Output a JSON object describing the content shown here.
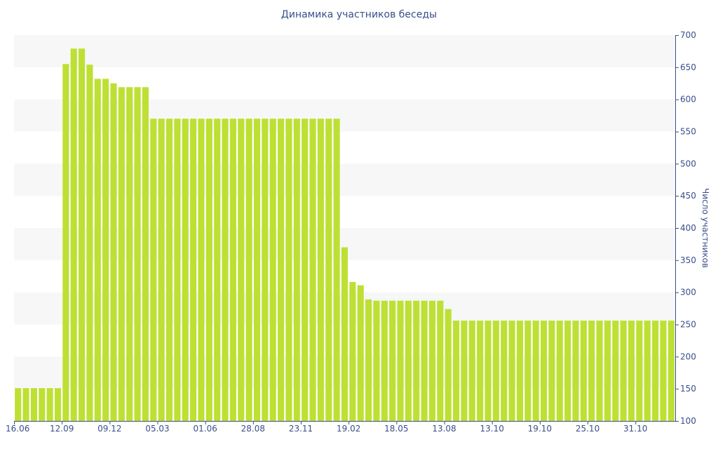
{
  "chart_data": {
    "type": "bar",
    "title": "Динамика участников беседы",
    "ylabel": "Число участников",
    "xlabel": "",
    "ylim": [
      100,
      700
    ],
    "yticks": [
      100,
      150,
      200,
      250,
      300,
      350,
      400,
      450,
      500,
      550,
      600,
      650,
      700
    ],
    "grid": "alternating horizontal bands",
    "y_axis_side": "right",
    "xtick_labels": [
      {
        "index": 0,
        "label": "16.06"
      },
      {
        "index": 6,
        "label": "12.09"
      },
      {
        "index": 12,
        "label": "09.12"
      },
      {
        "index": 18,
        "label": "05.03"
      },
      {
        "index": 24,
        "label": "01.06"
      },
      {
        "index": 30,
        "label": "28.08"
      },
      {
        "index": 36,
        "label": "23.11"
      },
      {
        "index": 42,
        "label": "19.02"
      },
      {
        "index": 48,
        "label": "18.05"
      },
      {
        "index": 54,
        "label": "13.08"
      },
      {
        "index": 60,
        "label": "13.10"
      },
      {
        "index": 66,
        "label": "19.10"
      },
      {
        "index": 72,
        "label": "25.10"
      },
      {
        "index": 78,
        "label": "31.10"
      }
    ],
    "values": [
      151,
      151,
      151,
      151,
      151,
      151,
      655,
      679,
      679,
      654,
      632,
      632,
      625,
      619,
      619,
      619,
      619,
      570,
      570,
      570,
      570,
      570,
      570,
      570,
      570,
      570,
      570,
      570,
      570,
      570,
      570,
      570,
      570,
      570,
      570,
      570,
      570,
      570,
      570,
      570,
      570,
      370,
      316,
      311,
      289,
      287,
      287,
      287,
      287,
      287,
      287,
      287,
      287,
      287,
      274,
      256,
      256,
      256,
      256,
      256,
      256,
      256,
      256,
      256,
      256,
      256,
      256,
      256,
      256,
      256,
      256,
      256,
      256,
      256,
      256,
      256,
      256,
      256,
      256,
      256,
      256,
      256,
      256
    ],
    "colors": {
      "bar": "#bde033",
      "axis": "#3a4f8a",
      "band": "#f7f7f7"
    }
  }
}
